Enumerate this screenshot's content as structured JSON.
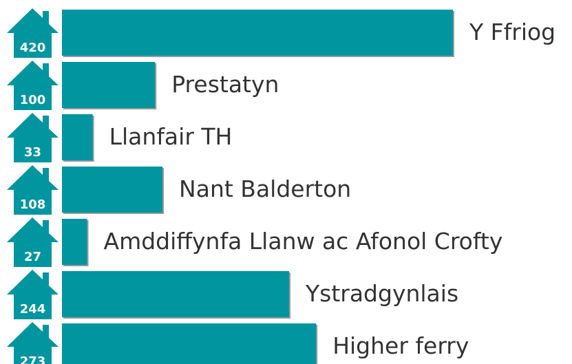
{
  "chart_data": {
    "type": "bar",
    "orientation": "horizontal",
    "categories": [
      "Y Ffriog",
      "Prestatyn",
      "Llanfair TH",
      "Nant Balderton",
      "Amddiffynfa Llanw ac Afonol Crofty",
      "Ystradgynlais",
      "Higher ferry"
    ],
    "values": [
      420,
      100,
      33,
      108,
      27,
      244,
      273
    ],
    "color": "#00959f"
  }
}
